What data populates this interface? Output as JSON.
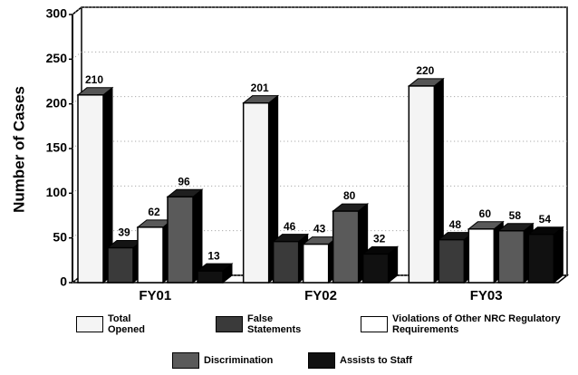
{
  "chart_data": {
    "type": "bar3d",
    "y_label": "Number of Cases",
    "categories": [
      "FY01",
      "FY02",
      "FY03"
    ],
    "series": [
      {
        "name": "Total Opened",
        "color": "#f4f4f4",
        "values": [
          210,
          201,
          220
        ]
      },
      {
        "name": "False Statements",
        "color": "#3a3a3a",
        "values": [
          39,
          46,
          48
        ]
      },
      {
        "name": "Violations of Other NRC Regulatory Requirements",
        "color": "#ffffff",
        "values": [
          62,
          43,
          60
        ]
      },
      {
        "name": "Discrimination",
        "color": "#5a5a5a",
        "values": [
          96,
          80,
          58
        ]
      },
      {
        "name": "Assists to Staff",
        "color": "#111111",
        "values": [
          13,
          32,
          54
        ]
      }
    ],
    "ylim": [
      0,
      300
    ],
    "yticks": [
      0,
      50,
      100,
      150,
      200,
      250,
      300
    ],
    "grid": true
  }
}
